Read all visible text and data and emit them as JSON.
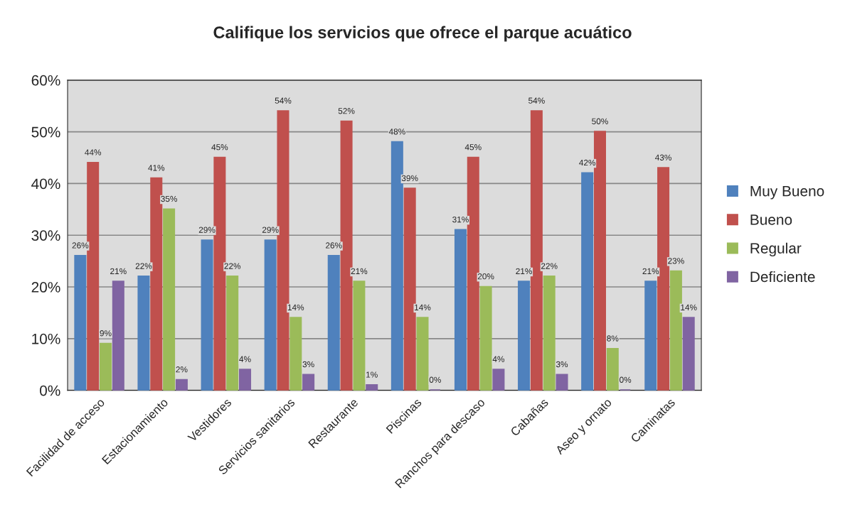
{
  "chart_data": {
    "type": "bar",
    "title": "Califique los servicios que ofrece el parque acuático",
    "categories": [
      "Facilidad de acceso",
      "Estacionamiento",
      "Vestidores",
      "Servicios sanitarios",
      "Restaurante",
      "Piscinas",
      "Ranchos para descaso",
      "Cabañas",
      "Aseo y ornato",
      "Caminatas"
    ],
    "series": [
      {
        "name": "Muy Bueno",
        "color": "#4f81bd",
        "values": [
          26,
          22,
          29,
          29,
          26,
          48,
          31,
          21,
          42,
          21
        ],
        "value_labels": [
          "26%",
          "22%",
          "29%",
          "29%",
          "26%",
          "48%",
          "31%",
          "21%",
          "42%",
          "21%"
        ]
      },
      {
        "name": "Bueno",
        "color": "#c0504d",
        "values": [
          44,
          41,
          45,
          54,
          52,
          39,
          45,
          54,
          50,
          43
        ],
        "value_labels": [
          "44%",
          "41%",
          "45%",
          "54%",
          "52%",
          "39%",
          "45%",
          "54%",
          "50%",
          "43%"
        ]
      },
      {
        "name": "Regular",
        "color": "#9bbb59",
        "values": [
          9,
          35,
          22,
          14,
          21,
          14,
          20,
          22,
          8,
          23
        ],
        "value_labels": [
          "9%",
          "35%",
          "22%",
          "14%",
          "21%",
          "14%",
          "20%",
          "22%",
          "8%",
          "23%"
        ]
      },
      {
        "name": "Deficiente",
        "color": "#8064a2",
        "values": [
          21,
          2,
          4,
          3,
          1,
          0,
          4,
          3,
          0,
          14
        ],
        "value_labels": [
          "21%",
          "2%",
          "4%",
          "3%",
          "1%",
          "0%",
          "4%",
          "3%",
          "0%",
          "14%"
        ]
      }
    ],
    "ylim": [
      0,
      60
    ],
    "yticks": [
      {
        "value": 0,
        "label": "0%"
      },
      {
        "value": 10,
        "label": "10%"
      },
      {
        "value": 20,
        "label": "20%"
      },
      {
        "value": 30,
        "label": "30%"
      },
      {
        "value": 40,
        "label": "40%"
      },
      {
        "value": 50,
        "label": "50%"
      },
      {
        "value": 60,
        "label": "60%"
      }
    ],
    "grid": "y",
    "legend": "right"
  }
}
